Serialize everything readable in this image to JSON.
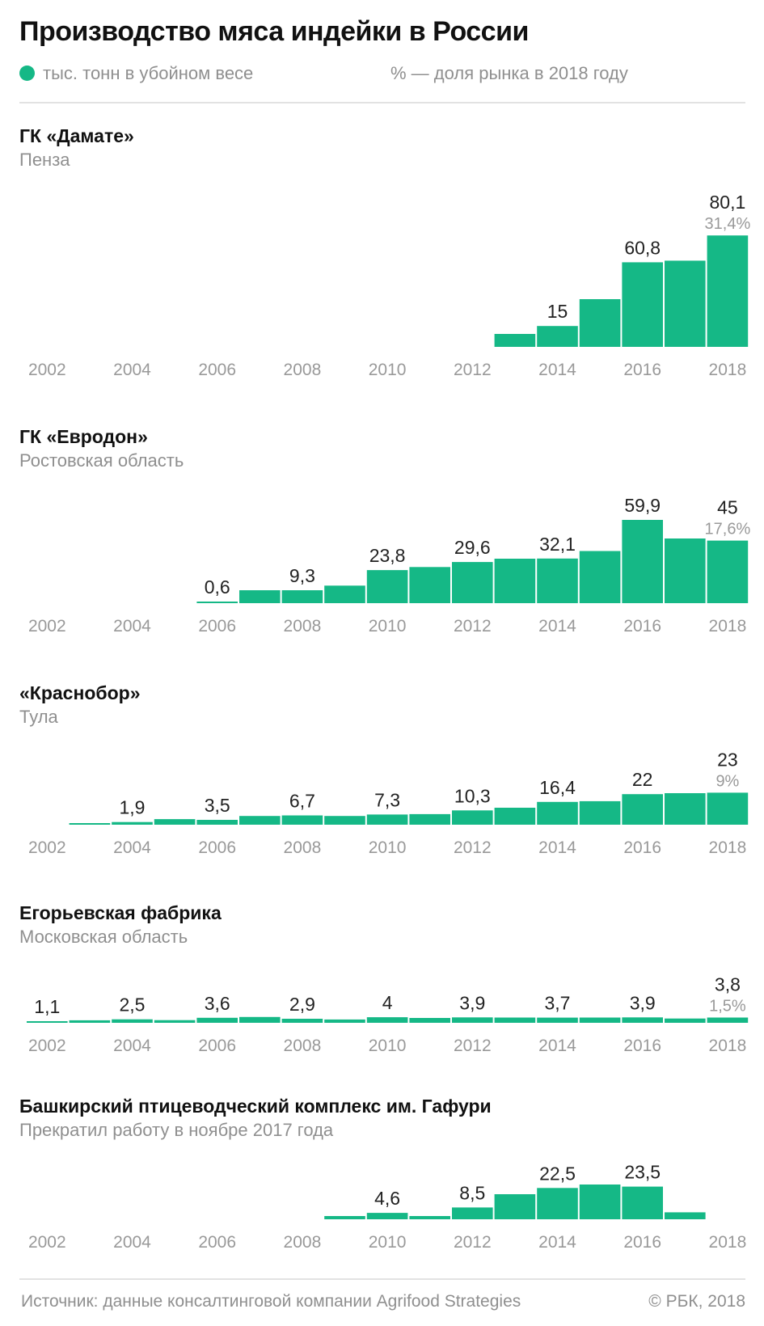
{
  "header": {
    "title": "Производство мяса индейки в России",
    "legend_units": "тыс. тонн в убойном весе",
    "legend_share": "% — доля рынка в 2018 году"
  },
  "colors": {
    "bar": "#15b886",
    "label": "#222222",
    "muted": "#999999"
  },
  "chart_data": [
    {
      "type": "bar",
      "title": "ГК «Дамате»",
      "subtitle": "Пенза",
      "unit": "тыс. тонн в убойном весе",
      "x": [
        2013,
        2014,
        2015,
        2016,
        2017,
        2018
      ],
      "values": [
        9.3,
        15,
        34.3,
        60.8,
        62,
        80.1
      ],
      "labels": [
        {
          "year": 2014,
          "text": "15"
        },
        {
          "year": 2016,
          "text": "60,8"
        },
        {
          "year": 2018,
          "text": "80,1"
        }
      ],
      "share_2018": "31,4%",
      "xticks": [
        "2002",
        "2004",
        "2006",
        "2008",
        "2010",
        "2012",
        "2014",
        "2016",
        "2018"
      ],
      "xlim": [
        2002,
        2018
      ]
    },
    {
      "type": "bar",
      "title": "ГК «Евродон»",
      "subtitle": "Ростовская область",
      "unit": "тыс. тонн в убойном весе",
      "x": [
        2006,
        2007,
        2008,
        2009,
        2010,
        2011,
        2012,
        2013,
        2014,
        2015,
        2016,
        2017,
        2018
      ],
      "values": [
        0.6,
        9.3,
        9.3,
        12.6,
        23.8,
        26,
        29.6,
        32,
        32.1,
        37.5,
        59.9,
        46.5,
        45
      ],
      "labels": [
        {
          "year": 2006,
          "text": "0,6"
        },
        {
          "year": 2008,
          "text": "9,3"
        },
        {
          "year": 2010,
          "text": "23,8"
        },
        {
          "year": 2012,
          "text": "29,6"
        },
        {
          "year": 2014,
          "text": "32,1"
        },
        {
          "year": 2016,
          "text": "59,9"
        },
        {
          "year": 2018,
          "text": "45"
        }
      ],
      "share_2018": "17,6%",
      "xticks": [
        "2002",
        "2004",
        "2006",
        "2008",
        "2010",
        "2012",
        "2014",
        "2016",
        "2018"
      ],
      "xlim": [
        2002,
        2018
      ]
    },
    {
      "type": "bar",
      "title": "«Краснобор»",
      "subtitle": "Тула",
      "unit": "тыс. тонн в убойном весе",
      "x": [
        2003,
        2004,
        2005,
        2006,
        2007,
        2008,
        2009,
        2010,
        2011,
        2012,
        2013,
        2014,
        2015,
        2016,
        2017,
        2018
      ],
      "values": [
        0.5,
        1.9,
        4,
        3.5,
        6.3,
        6.7,
        6.3,
        7.3,
        7.6,
        10.3,
        12.2,
        16.4,
        16.9,
        22,
        22.7,
        23
      ],
      "labels": [
        {
          "year": 2004,
          "text": "1,9"
        },
        {
          "year": 2006,
          "text": "3,5"
        },
        {
          "year": 2008,
          "text": "6,7"
        },
        {
          "year": 2010,
          "text": "7,3"
        },
        {
          "year": 2012,
          "text": "10,3"
        },
        {
          "year": 2014,
          "text": "16,4"
        },
        {
          "year": 2016,
          "text": "22"
        },
        {
          "year": 2018,
          "text": "23"
        }
      ],
      "share_2018": "9%",
      "xticks": [
        "2002",
        "2004",
        "2006",
        "2008",
        "2010",
        "2012",
        "2014",
        "2016",
        "2018"
      ],
      "xlim": [
        2002,
        2018
      ]
    },
    {
      "type": "bar",
      "title": "Егорьевская фабрика",
      "subtitle": "Московская область",
      "unit": "тыс. тонн в убойном весе",
      "x": [
        2002,
        2003,
        2004,
        2005,
        2006,
        2007,
        2008,
        2009,
        2010,
        2011,
        2012,
        2013,
        2014,
        2015,
        2016,
        2017,
        2018
      ],
      "values": [
        1.1,
        1.8,
        2.5,
        1.9,
        3.6,
        4.2,
        2.9,
        2.4,
        4,
        3.5,
        3.9,
        3.8,
        3.7,
        3.8,
        3.9,
        3.1,
        3.8
      ],
      "labels": [
        {
          "year": 2002,
          "text": "1,1"
        },
        {
          "year": 2004,
          "text": "2,5"
        },
        {
          "year": 2006,
          "text": "3,6"
        },
        {
          "year": 2008,
          "text": "2,9"
        },
        {
          "year": 2010,
          "text": "4"
        },
        {
          "year": 2012,
          "text": "3,9"
        },
        {
          "year": 2014,
          "text": "3,7"
        },
        {
          "year": 2016,
          "text": "3,9"
        },
        {
          "year": 2018,
          "text": "3,8"
        }
      ],
      "share_2018": "1,5%",
      "xticks": [
        "2002",
        "2004",
        "2006",
        "2008",
        "2010",
        "2012",
        "2014",
        "2016",
        "2018"
      ],
      "xlim": [
        2002,
        2018
      ]
    },
    {
      "type": "bar",
      "title": "Башкирский птицеводческий комплекс им. Гафури",
      "subtitle": "Прекратил работу в ноябре 2017 года",
      "unit": "тыс. тонн в убойном весе",
      "x": [
        2009,
        2010,
        2011,
        2012,
        2013,
        2014,
        2015,
        2016,
        2017
      ],
      "values": [
        2.3,
        4.6,
        2.3,
        8.5,
        18,
        22.5,
        25,
        23.5,
        5
      ],
      "labels": [
        {
          "year": 2010,
          "text": "4,6"
        },
        {
          "year": 2012,
          "text": "8,5"
        },
        {
          "year": 2014,
          "text": "22,5"
        },
        {
          "year": 2016,
          "text": "23,5"
        }
      ],
      "share_2018": null,
      "xticks": [
        "2002",
        "2004",
        "2006",
        "2008",
        "2010",
        "2012",
        "2014",
        "2016",
        "2018"
      ],
      "xlim": [
        2002,
        2018
      ]
    }
  ],
  "footer": {
    "source": "Источник: данные консалтинговой компании Agrifood Strategies",
    "copyright": "© РБК, 2018"
  }
}
